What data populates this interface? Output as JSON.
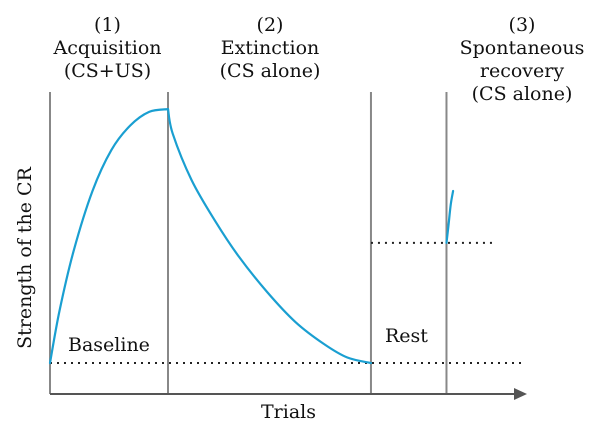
{
  "chart_data": {
    "type": "line",
    "title": "",
    "xlabel": "Trials",
    "ylabel": "Strength of the CR",
    "phases": [
      {
        "number": "(1)",
        "name": "Acquisition",
        "condition": "(CS+US)"
      },
      {
        "number": "(2)",
        "name": "Extinction",
        "condition": "(CS alone)"
      },
      {
        "number": "(3)",
        "name": "Spontaneous",
        "name2": "recovery",
        "condition": "(CS alone)"
      }
    ],
    "annotations": {
      "baseline": "Baseline",
      "rest": "Rest"
    },
    "xlim": [
      0,
      100
    ],
    "ylim": [
      0,
      100
    ],
    "phase_boundaries_x": [
      0,
      25,
      68,
      84
    ],
    "series": [
      {
        "segment": "acquisition",
        "x": [
          0,
          2,
          5,
          9,
          13,
          17,
          21,
          25
        ],
        "y": [
          0,
          19,
          41,
          63,
          78,
          87,
          92,
          93
        ]
      },
      {
        "segment": "extinction",
        "x": [
          25,
          26,
          30,
          35,
          40,
          46,
          52,
          58,
          63,
          68
        ],
        "y": [
          93,
          84,
          67,
          52,
          39,
          26,
          15,
          7,
          2,
          0
        ]
      },
      {
        "segment": "spontaneous-recovery",
        "x": [
          84,
          84.4,
          84.9,
          85.4
        ],
        "y": [
          44,
          50,
          58,
          63
        ]
      }
    ],
    "reference_lines": [
      {
        "name": "baseline",
        "y": 0,
        "x_from": 0,
        "x_to": 100
      },
      {
        "name": "recovery-level",
        "y": 44,
        "x_from": 68,
        "x_to": 94
      }
    ],
    "colors": {
      "curve": "#1a9fd1",
      "axis": "#555555",
      "boundary": "#888888",
      "dotted": "#222222"
    }
  }
}
